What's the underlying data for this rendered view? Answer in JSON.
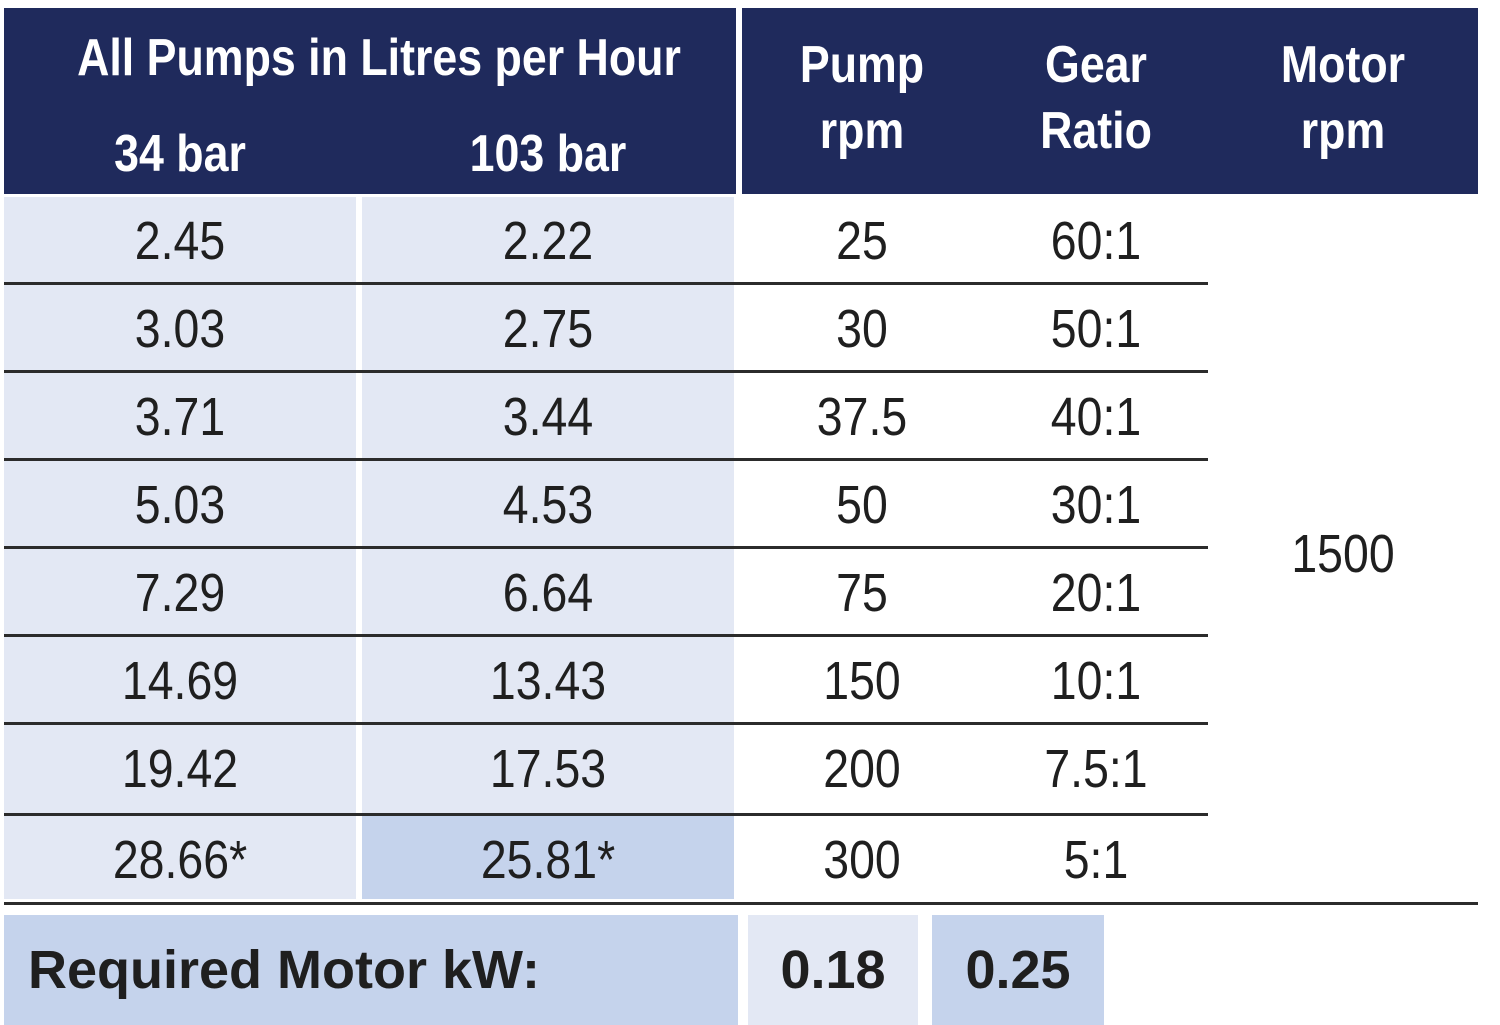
{
  "header": {
    "title": "All Pumps in Litres per Hour",
    "sub_34": "34 bar",
    "sub_103": "103 bar",
    "pump_rpm": [
      "Pump",
      "rpm"
    ],
    "gear_ratio": [
      "Gear",
      "Ratio"
    ],
    "motor_rpm": [
      "Motor",
      "rpm"
    ]
  },
  "rows": [
    {
      "bar34": "2.45",
      "bar103": "2.22",
      "pump_rpm": "25",
      "gear": "60:1"
    },
    {
      "bar34": "3.03",
      "bar103": "2.75",
      "pump_rpm": "30",
      "gear": "50:1"
    },
    {
      "bar34": "3.71",
      "bar103": "3.44",
      "pump_rpm": "37.5",
      "gear": "40:1"
    },
    {
      "bar34": "5.03",
      "bar103": "4.53",
      "pump_rpm": "50",
      "gear": "30:1"
    },
    {
      "bar34": "7.29",
      "bar103": "6.64",
      "pump_rpm": "75",
      "gear": "20:1"
    },
    {
      "bar34": "14.69",
      "bar103": "13.43",
      "pump_rpm": "150",
      "gear": "10:1"
    },
    {
      "bar34": "19.42",
      "bar103": "17.53",
      "pump_rpm": "200",
      "gear": "7.5:1"
    },
    {
      "bar34": "28.66*",
      "bar103": "25.81*",
      "pump_rpm": "300",
      "gear": "5:1"
    }
  ],
  "motor_rpm_value": "1500",
  "footer": {
    "label": "Required Motor kW:",
    "value_1": "0.18",
    "value_2": "0.25"
  },
  "colors": {
    "header_bg": "#1f2a5c",
    "light_column": "#e3e8f4",
    "highlight": "#c5d3ec"
  }
}
